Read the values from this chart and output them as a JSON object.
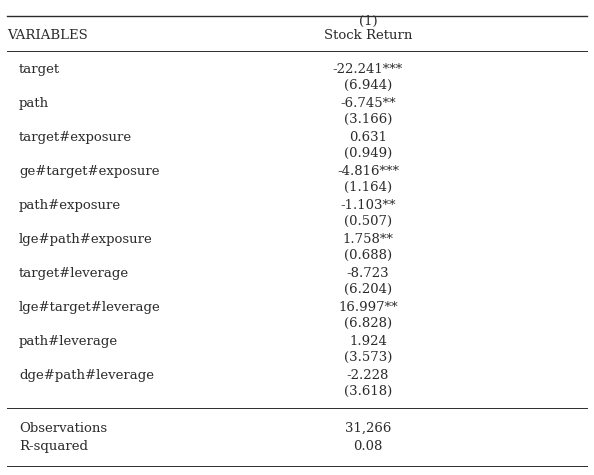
{
  "title_line1": "(1)",
  "title_line2": "Stock Return",
  "col_header": "VARIABLES",
  "rows": [
    {
      "var": "target",
      "coef": "-22.241***",
      "se": "(6.944)"
    },
    {
      "var": "path",
      "coef": "-6.745**",
      "se": "(3.166)"
    },
    {
      "var": "target#exposure",
      "coef": "0.631",
      "se": "(0.949)"
    },
    {
      "var": "ge#target#exposure",
      "coef": "-4.816***",
      "se": "(1.164)"
    },
    {
      "var": "path#exposure",
      "coef": "-1.103**",
      "se": "(0.507)"
    },
    {
      "var": "lge#path#exposure",
      "coef": "1.758**",
      "se": "(0.688)"
    },
    {
      "var": "target#leverage",
      "coef": "-8.723",
      "se": "(6.204)"
    },
    {
      "var": "lge#target#leverage",
      "coef": "16.997**",
      "se": "(6.828)"
    },
    {
      "var": "path#leverage",
      "coef": "1.924",
      "se": "(3.573)"
    },
    {
      "var": "dge#path#leverage",
      "coef": "-2.228",
      "se": "(3.618)"
    }
  ],
  "observations": "31,266",
  "r_squared": "0.08",
  "bg_color": "#ffffff",
  "text_color": "#2b2b2b",
  "font_size": 9.5
}
